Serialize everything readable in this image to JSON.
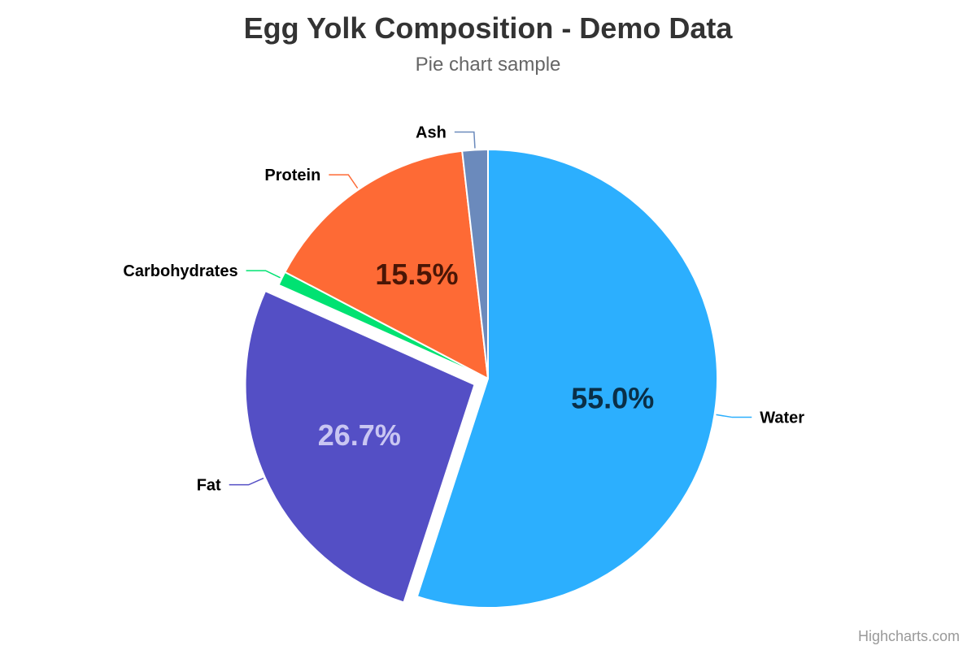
{
  "chart_data": {
    "type": "pie",
    "title": "Egg Yolk Composition - Demo Data",
    "subtitle": "Pie chart sample",
    "slices": [
      {
        "name": "Water",
        "value": 55.0,
        "label": "55.0%",
        "color": "#2caffe",
        "label_color": "#0a2f47",
        "sliced": false
      },
      {
        "name": "Fat",
        "value": 26.7,
        "label": "26.7%",
        "color": "#544fc5",
        "label_color": "#c9c6f2",
        "sliced": true
      },
      {
        "name": "Carbohydrates",
        "value": 1.0,
        "label": "",
        "color": "#00e272",
        "label_color": "#0b3d22",
        "sliced": false
      },
      {
        "name": "Protein",
        "value": 15.5,
        "label": "15.5%",
        "color": "#fe6a35",
        "label_color": "#4a1606",
        "sliced": false
      },
      {
        "name": "Ash",
        "value": 1.8,
        "label": "",
        "color": "#6b8abc",
        "label_color": "#17263f",
        "sliced": false
      }
    ],
    "legend": "none"
  },
  "credits": "Highcharts.com"
}
